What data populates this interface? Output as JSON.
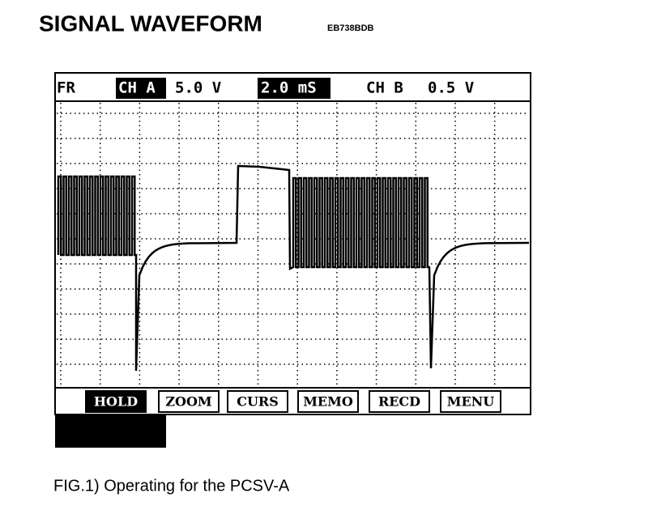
{
  "header": {
    "title": "SIGNAL WAVEFORM",
    "code": "EB738BDB"
  },
  "screen": {
    "status": {
      "mode": "FR",
      "channel_a": "CH A",
      "volts_a": "5.0 V",
      "timebase": "2.0 mS",
      "channel_b": "CH B",
      "volts_b": "0.5 V"
    },
    "buttons": [
      "HOLD",
      "ZOOM",
      "CURS",
      "MEMO",
      "RECD",
      "MENU"
    ]
  },
  "caption": "FIG.1) Operating for the PCSV-A"
}
